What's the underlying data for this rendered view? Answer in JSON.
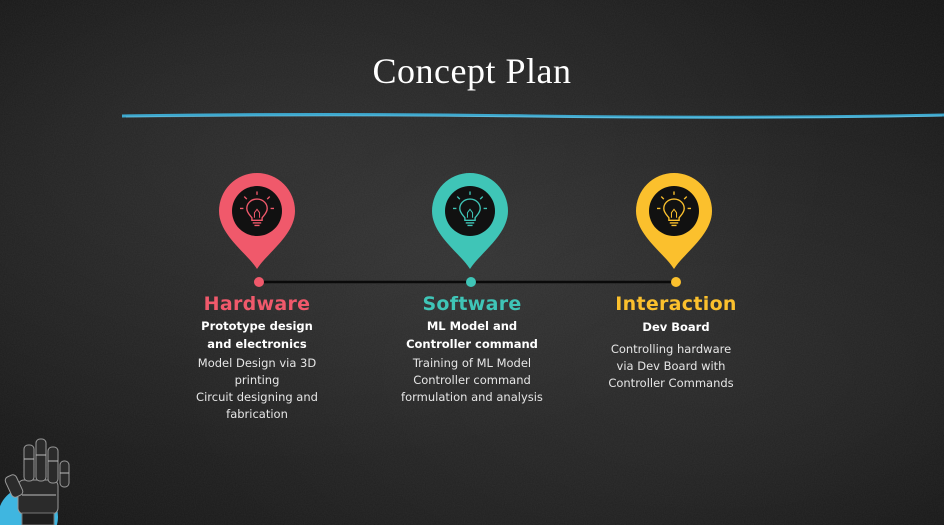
{
  "slide": {
    "title": "Concept Plan",
    "colors": {
      "background": "#1d1d1d",
      "underline": "#3fb6e0",
      "hardware": "#f0596b",
      "software": "#3fc5b7",
      "interaction": "#fbc02d"
    }
  },
  "phases": [
    {
      "icon": "lightbulb-icon",
      "heading": "Hardware",
      "subtitle_lines": [
        "Prototype design",
        "and electronics"
      ],
      "description_lines": [
        "Model Design via 3D",
        "printing",
        "Circuit designing and",
        "fabrication"
      ]
    },
    {
      "icon": "lightbulb-icon",
      "heading": "Software",
      "subtitle_lines": [
        "ML Model and",
        "Controller command"
      ],
      "description_lines": [
        "Training of ML Model",
        "Controller command",
        "formulation and analysis"
      ]
    },
    {
      "icon": "lightbulb-icon",
      "heading": "Interaction",
      "subtitle_lines": [
        "Dev Board"
      ],
      "description_lines": [
        "Controlling hardware",
        "via Dev Board with",
        "Controller Commands"
      ]
    }
  ]
}
